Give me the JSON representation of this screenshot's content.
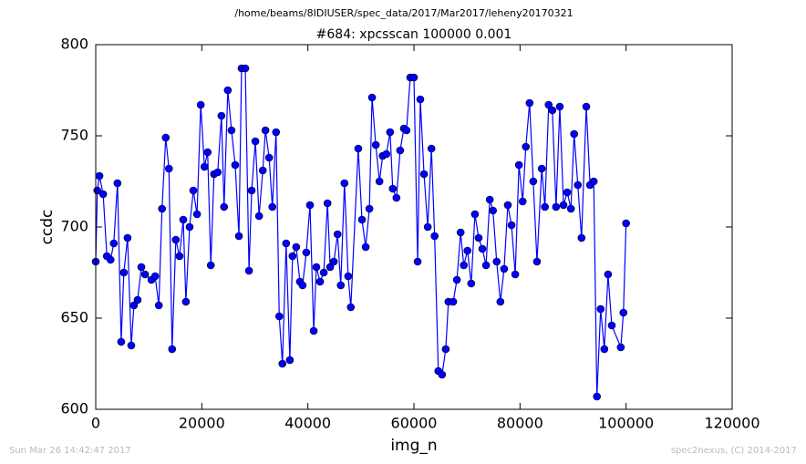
{
  "chart_data": {
    "type": "line",
    "suptitle": "/home/beams/8IDIUSER/spec_data/2017/Mar2017/leheny20170321",
    "title": "#684: xpcsscan 100000 0.001",
    "xlabel": "img_n",
    "ylabel": "ccdc",
    "footer_left": "Sun Mar 26 14:42:47 2017",
    "footer_right": "spec2nexus, (C) 2014-2017",
    "xlim": [
      0,
      120000
    ],
    "xticks": [
      0,
      20000,
      40000,
      60000,
      80000,
      100000,
      120000
    ],
    "ylim": [
      600,
      800
    ],
    "yticks": [
      600,
      650,
      700,
      750,
      800
    ],
    "x": [
      0,
      300,
      700,
      1400,
      2100,
      2800,
      3400,
      4100,
      4800,
      5300,
      6000,
      6700,
      7200,
      7900,
      8600,
      9300,
      10500,
      11200,
      11900,
      12500,
      13200,
      13800,
      14400,
      15100,
      15800,
      16500,
      17000,
      17700,
      18400,
      19100,
      19800,
      20500,
      21100,
      21700,
      22300,
      23000,
      23700,
      24200,
      24900,
      25600,
      26300,
      27000,
      27500,
      28200,
      28900,
      29400,
      30100,
      30800,
      31500,
      32000,
      32700,
      33300,
      34000,
      34600,
      35200,
      35900,
      36600,
      37100,
      37800,
      38500,
      39000,
      39700,
      40400,
      41100,
      41600,
      42300,
      43000,
      43700,
      44200,
      44900,
      45600,
      46200,
      46900,
      47600,
      48100,
      49500,
      50200,
      50900,
      51600,
      52100,
      52800,
      53500,
      54100,
      54800,
      55500,
      56000,
      56700,
      57400,
      58100,
      58600,
      59300,
      60000,
      60700,
      61200,
      61900,
      62600,
      63300,
      63900,
      64600,
      65300,
      66000,
      66500,
      67400,
      68100,
      68800,
      69400,
      70100,
      70800,
      71500,
      72200,
      72900,
      73600,
      74300,
      74900,
      75600,
      76300,
      77000,
      77700,
      78400,
      79100,
      79800,
      80500,
      81100,
      81800,
      82500,
      83200,
      84100,
      84700,
      85400,
      86100,
      86800,
      87500,
      88200,
      88900,
      89600,
      90200,
      90900,
      91600,
      92500,
      93200,
      93900,
      94500,
      95200,
      95900,
      96600,
      97300,
      99000,
      99500,
      100000
    ],
    "series": [
      {
        "name": "ccdc",
        "color": "#0000ff",
        "values": [
          681,
          720,
          728,
          718,
          684,
          682,
          691,
          724,
          637,
          675,
          694,
          635,
          657,
          660,
          678,
          674,
          671,
          673,
          657,
          710,
          749,
          732,
          633,
          693,
          684,
          704,
          659,
          700,
          720,
          707,
          767,
          733,
          741,
          679,
          729,
          730,
          761,
          711,
          775,
          753,
          734,
          695,
          787,
          787,
          676,
          720,
          747,
          706,
          731,
          753,
          738,
          711,
          752,
          651,
          625,
          691,
          627,
          684,
          689,
          670,
          668,
          686,
          712,
          643,
          678,
          670,
          675,
          713,
          678,
          681,
          696,
          668,
          724,
          673,
          656,
          743,
          704,
          689,
          710,
          771,
          745,
          725,
          739,
          740,
          752,
          721,
          716,
          742,
          754,
          753,
          782,
          782,
          681,
          770,
          729,
          700,
          743,
          695,
          621,
          619,
          633,
          659,
          659,
          671,
          697,
          679,
          687,
          669,
          707,
          694,
          688,
          679,
          715,
          709,
          681,
          659,
          677,
          712,
          701,
          674,
          734,
          714,
          744,
          768,
          725,
          681,
          732,
          711,
          767,
          764,
          711,
          766,
          712,
          719,
          710,
          751,
          723,
          694,
          766,
          723,
          725,
          607,
          655,
          633,
          674,
          646,
          634,
          653,
          702
        ]
      }
    ]
  }
}
